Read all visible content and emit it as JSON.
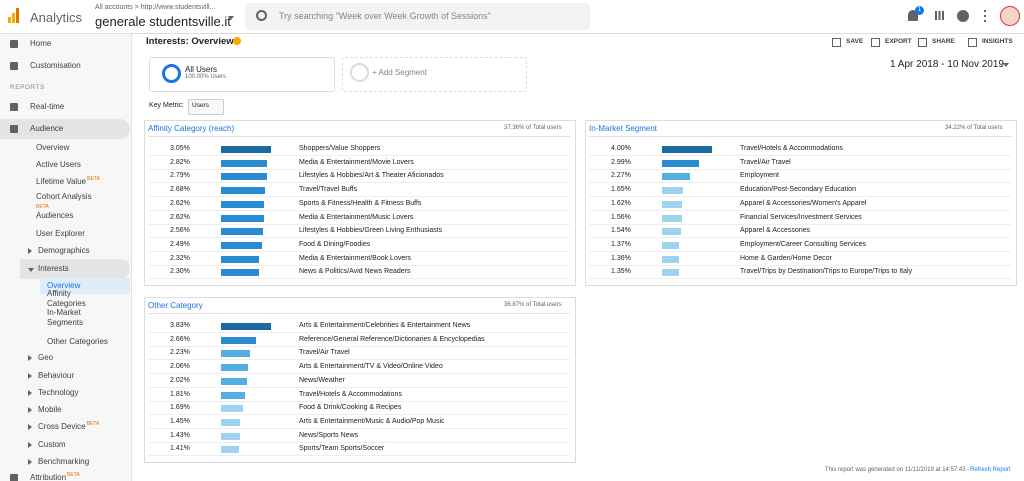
{
  "header": {
    "product": "Analytics",
    "breadcrumb": "All accounts > http://www.studentsvill...",
    "property": "generale studentsville.it",
    "search_placeholder": "Try searching \"Week over Week Growth of Sessions\"",
    "notification_count": "1"
  },
  "sidebar": {
    "section": "REPORTS",
    "items": [
      {
        "label": "Home"
      },
      {
        "label": "Customisation"
      },
      {
        "label": "Real-time"
      },
      {
        "label": "Audience"
      },
      {
        "label": "Overview"
      },
      {
        "label": "Active Users"
      },
      {
        "label": "Lifetime Value",
        "badge": "BETA"
      },
      {
        "label": "Cohort Analysis",
        "badge": "BETA"
      },
      {
        "label": "Audiences"
      },
      {
        "label": "User Explorer"
      },
      {
        "label": "Demographics"
      },
      {
        "label": "Interests"
      },
      {
        "label": "Overview"
      },
      {
        "label": "Affinity Categories"
      },
      {
        "label": "In-Market Segments"
      },
      {
        "label": "Other Categories"
      },
      {
        "label": "Geo"
      },
      {
        "label": "Behaviour"
      },
      {
        "label": "Technology"
      },
      {
        "label": "Mobile"
      },
      {
        "label": "Cross Device",
        "badge": "BETA"
      },
      {
        "label": "Custom"
      },
      {
        "label": "Benchmarking"
      },
      {
        "label": "Attribution",
        "badge": "BETA"
      }
    ]
  },
  "page": {
    "title": "Interests: Overview",
    "actions": [
      "SAVE",
      "EXPORT",
      "SHARE",
      "INSIGHTS"
    ],
    "segment": {
      "name": "All Users",
      "sub": "100.00% Users"
    },
    "add_segment": "+ Add Segment",
    "date_range": "1 Apr 2018 - 10 Nov 2019",
    "key_metric_label": "Key Metric:",
    "key_metric": "Users"
  },
  "panels": [
    {
      "title": "Affinity Category (reach)",
      "total": "37.36% of Total users",
      "values": [
        3.05,
        2.82,
        2.79,
        2.68,
        2.62,
        2.62,
        2.56,
        2.49,
        2.32,
        2.3
      ],
      "value_labels": [
        "3.05%",
        "2.82%",
        "2.79%",
        "2.68%",
        "2.62%",
        "2.62%",
        "2.56%",
        "2.49%",
        "2.32%",
        "2.30%"
      ],
      "categories": [
        "Shoppers/Value Shoppers",
        "Media & Entertainment/Movie Lovers",
        "Lifestyles & Hobbies/Art & Theater Aficionados",
        "Travel/Travel Buffs",
        "Sports & Fitness/Health & Fitness Buffs",
        "Media & Entertainment/Music Lovers",
        "Lifestyles & Hobbies/Green Living Enthusiasts",
        "Food & Dining/Foodies",
        "Media & Entertainment/Book Lovers",
        "News & Politics/Avid News Readers"
      ]
    },
    {
      "title": "In-Market Segment",
      "total": "34.22% of Total users",
      "values": [
        4.0,
        2.99,
        2.27,
        1.65,
        1.62,
        1.56,
        1.54,
        1.37,
        1.36,
        1.35
      ],
      "value_labels": [
        "4.00%",
        "2.99%",
        "2.27%",
        "1.65%",
        "1.62%",
        "1.56%",
        "1.54%",
        "1.37%",
        "1.36%",
        "1.35%"
      ],
      "categories": [
        "Travel/Hotels & Accommodations",
        "Travel/Air Travel",
        "Employment",
        "Education/Post-Secondary Education",
        "Apparel & Accessories/Women's Apparel",
        "Financial Services/Investment Services",
        "Apparel & Accessories",
        "Employment/Career Consulting Services",
        "Home & Garden/Home Decor",
        "Travel/Trips by Destination/Trips to Europe/Trips to Italy"
      ]
    },
    {
      "title": "Other Category",
      "total": "36.87% of Total users",
      "values": [
        3.83,
        2.66,
        2.23,
        2.06,
        2.02,
        1.81,
        1.69,
        1.45,
        1.43,
        1.41
      ],
      "value_labels": [
        "3.83%",
        "2.66%",
        "2.23%",
        "2.06%",
        "2.02%",
        "1.81%",
        "1.69%",
        "1.45%",
        "1.43%",
        "1.41%"
      ],
      "categories": [
        "Arts & Entertainment/Celebrities & Entertainment News",
        "Reference/General Reference/Dictionaries & Encyclopedias",
        "Travel/Air Travel",
        "Arts & Entertainment/TV & Video/Online Video",
        "News/Weather",
        "Travel/Hotels & Accommodations",
        "Food & Drink/Cooking & Recipes",
        "Arts & Entertainment/Music & Audio/Pop Music",
        "News/Sports News",
        "Sports/Team Sports/Soccer"
      ]
    }
  ],
  "footer": {
    "text": "This report was generated on 11/11/2019 at 14:57:43 -",
    "link": "Refresh Report"
  }
}
